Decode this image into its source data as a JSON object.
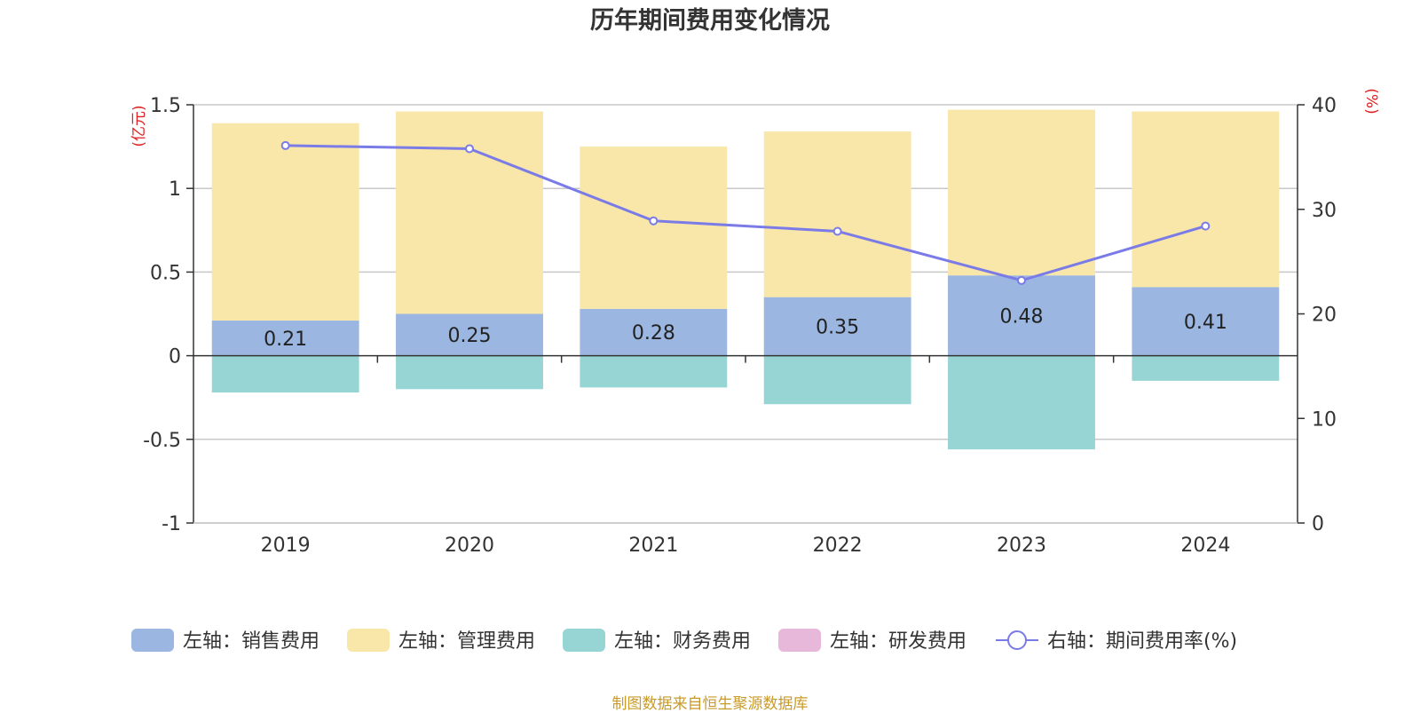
{
  "chart_data": {
    "type": "bar",
    "title": "历年期间费用变化情况",
    "categories": [
      "2019",
      "2020",
      "2021",
      "2022",
      "2023",
      "2024"
    ],
    "left_axis": {
      "unit": "(亿元)",
      "ylim": [
        -1,
        1.5
      ],
      "ticks": [
        "1.5",
        "1",
        "0.5",
        "0",
        "-0.5",
        "-1"
      ]
    },
    "right_axis": {
      "unit": "(%)",
      "ylim": [
        0,
        40
      ],
      "ticks": [
        "40",
        "30",
        "20",
        "10",
        "0"
      ]
    },
    "series": [
      {
        "name": "左轴：销售费用",
        "axis": "left",
        "kind": "bar",
        "color": "#9bb6e0",
        "values": [
          0.21,
          0.25,
          0.28,
          0.35,
          0.48,
          0.41
        ],
        "labels": [
          "0.21",
          "0.25",
          "0.28",
          "0.35",
          "0.48",
          "0.41"
        ]
      },
      {
        "name": "左轴：管理费用",
        "axis": "left",
        "kind": "bar",
        "color": "#f8e7a8",
        "values": [
          1.18,
          1.21,
          0.97,
          0.99,
          0.99,
          1.05
        ]
      },
      {
        "name": "左轴：财务费用",
        "axis": "left",
        "kind": "bar",
        "color": "#97d4d4",
        "values": [
          -0.22,
          -0.2,
          -0.19,
          -0.29,
          -0.56,
          -0.15
        ]
      },
      {
        "name": "左轴：研发费用",
        "axis": "left",
        "kind": "bar",
        "color": "#e8b8da",
        "values": [
          0,
          0,
          0,
          0,
          0,
          0
        ]
      },
      {
        "name": "右轴：期间费用率(%)",
        "axis": "right",
        "kind": "line",
        "color": "#7b7be8",
        "values": [
          36.1,
          35.8,
          28.9,
          27.9,
          23.2,
          28.4
        ]
      }
    ],
    "grid": true,
    "legend": "bottom"
  },
  "footer": {
    "source": "制图数据来自恒生聚源数据库"
  }
}
